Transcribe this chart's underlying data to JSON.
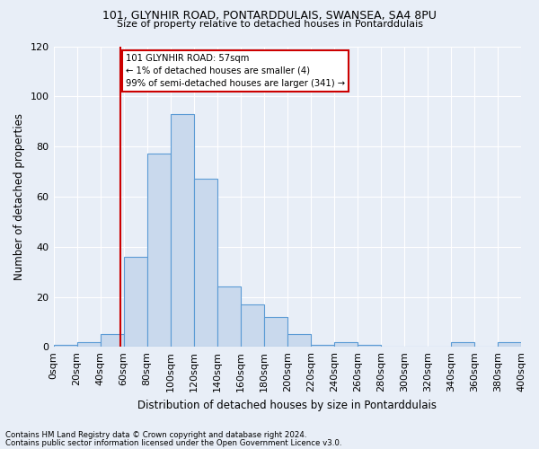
{
  "title1": "101, GLYNHIR ROAD, PONTARDDULAIS, SWANSEA, SA4 8PU",
  "title2": "Size of property relative to detached houses in Pontarddulais",
  "xlabel": "Distribution of detached houses by size in Pontarddulais",
  "ylabel": "Number of detached properties",
  "bin_edges": [
    0,
    20,
    40,
    60,
    80,
    100,
    120,
    140,
    160,
    180,
    200,
    220,
    240,
    260,
    280,
    300,
    320,
    340,
    360,
    380,
    400
  ],
  "bar_heights": [
    1,
    2,
    5,
    36,
    77,
    93,
    67,
    24,
    17,
    12,
    5,
    1,
    2,
    1,
    0,
    0,
    0,
    2,
    0,
    2
  ],
  "bar_color": "#c9d9ed",
  "bar_edge_color": "#5b9bd5",
  "property_size": 57,
  "vline_color": "#cc0000",
  "annotation_text": "101 GLYNHIR ROAD: 57sqm\n← 1% of detached houses are smaller (4)\n99% of semi-detached houses are larger (341) →",
  "annotation_box_edge": "#cc0000",
  "annotation_box_face": "#ffffff",
  "ylim": [
    0,
    120
  ],
  "yticks": [
    0,
    20,
    40,
    60,
    80,
    100,
    120
  ],
  "tick_labels": [
    "0sqm",
    "20sqm",
    "40sqm",
    "60sqm",
    "80sqm",
    "100sqm",
    "120sqm",
    "140sqm",
    "160sqm",
    "180sqm",
    "200sqm",
    "220sqm",
    "240sqm",
    "260sqm",
    "280sqm",
    "300sqm",
    "320sqm",
    "340sqm",
    "360sqm",
    "380sqm",
    "400sqm"
  ],
  "footer1": "Contains HM Land Registry data © Crown copyright and database right 2024.",
  "footer2": "Contains public sector information licensed under the Open Government Licence v3.0.",
  "bg_color": "#e8eef7",
  "plot_bg_color": "#e8eef7",
  "grid_color": "#ffffff"
}
